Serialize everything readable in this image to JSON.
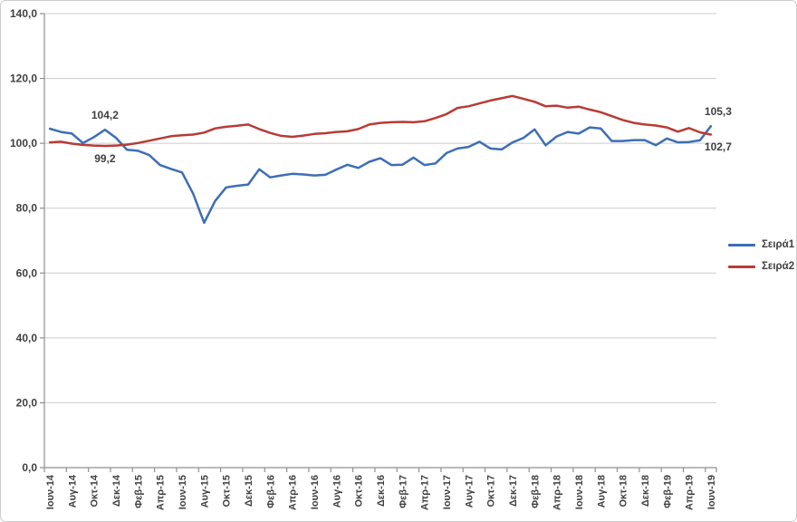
{
  "chart": {
    "colors": {
      "gridline": "#cccccc",
      "axis": "#8f8f8f",
      "text": "#3f3f3f",
      "background": "#ffffff"
    },
    "y_axis": {
      "labels": [
        "140,0",
        "120,0",
        "100,0",
        "80,0",
        "60,0",
        "40,0",
        "20,0",
        "0,0"
      ],
      "min": 0,
      "max": 140,
      "step": 20
    },
    "x_axis": {
      "points_per_label": 2
    },
    "annotations": [
      {
        "text": "104,2",
        "series": 0,
        "index": 5,
        "position": "above"
      },
      {
        "text": "99,2",
        "series": 1,
        "index": 5,
        "position": "below"
      },
      {
        "text": "105,3",
        "series": 0,
        "index": 60,
        "position": "above"
      },
      {
        "text": "102,7",
        "series": 1,
        "index": 60,
        "position": "below"
      }
    ]
  },
  "chart_data": {
    "type": "line",
    "title": "",
    "xlabel": "",
    "ylabel": "",
    "ylim": [
      0,
      140
    ],
    "grid": true,
    "legend_position": "right",
    "categories": [
      "Ιουν-14",
      "Αυγ-14",
      "Οκτ-14",
      "Δεκ-14",
      "Φεβ-15",
      "Απρ-15",
      "Ιουν-15",
      "Αυγ-15",
      "Οκτ-15",
      "Δεκ-15",
      "Φεβ-16",
      "Απρ-16",
      "Ιουν-16",
      "Αυγ-16",
      "Οκτ-16",
      "Δεκ-16",
      "Φεβ-17",
      "Απρ-17",
      "Ιουν-17",
      "Αυγ-17",
      "Οκτ-17",
      "Δεκ-17",
      "Φεβ-18",
      "Απρ-18",
      "Ιουν-18",
      "Αυγ-18",
      "Οκτ-18",
      "Δεκ-18",
      "Φεβ-19",
      "Απρ-19",
      "Ιουν-19"
    ],
    "series": [
      {
        "name": "Σειρά1",
        "color": "#3d6eb5",
        "values": [
          104.5,
          103.5,
          103.0,
          100.1,
          101.9,
          104.2,
          101.7,
          98.0,
          97.7,
          96.4,
          93.3,
          92.1,
          91.0,
          84.5,
          75.5,
          82.2,
          86.4,
          86.9,
          87.3,
          92.0,
          89.5,
          90.1,
          90.6,
          90.4,
          90.1,
          90.3,
          91.9,
          93.4,
          92.4,
          94.3,
          95.4,
          93.3,
          93.4,
          95.6,
          93.3,
          93.8,
          97.0,
          98.4,
          98.9,
          100.5,
          98.4,
          98.1,
          100.3,
          101.7,
          104.3,
          99.4,
          102.1,
          103.5,
          103.0,
          104.9,
          104.6,
          100.7,
          100.7,
          101.0,
          101.0,
          99.4,
          101.5,
          100.3,
          100.4,
          100.9,
          105.3
        ]
      },
      {
        "name": "Σειρά2",
        "color": "#b83b35",
        "values": [
          100.3,
          100.5,
          99.9,
          99.5,
          99.3,
          99.2,
          99.3,
          99.6,
          100.1,
          100.8,
          101.5,
          102.2,
          102.5,
          102.7,
          103.3,
          104.6,
          105.1,
          105.4,
          105.8,
          104.4,
          103.2,
          102.3,
          102.0,
          102.4,
          102.9,
          103.1,
          103.5,
          103.7,
          104.4,
          105.8,
          106.3,
          106.5,
          106.6,
          106.5,
          106.8,
          107.8,
          109.0,
          110.9,
          111.4,
          112.3,
          113.2,
          113.9,
          114.6,
          113.7,
          112.8,
          111.4,
          111.6,
          111.0,
          111.3,
          110.4,
          109.6,
          108.4,
          107.2,
          106.3,
          105.8,
          105.5,
          104.9,
          103.6,
          104.7,
          103.4,
          102.7
        ]
      }
    ]
  }
}
